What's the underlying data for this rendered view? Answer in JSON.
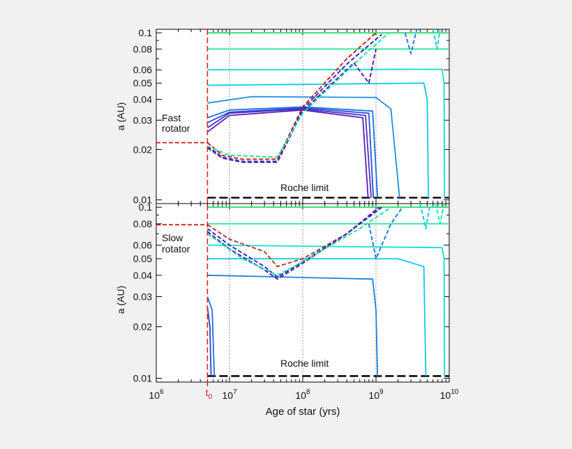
{
  "chart_data": [
    {
      "type": "line",
      "panel": "top",
      "annotation_lines": [
        "Fast",
        "rotator"
      ],
      "ylabel": "a (AU)",
      "xlabel": "",
      "xscale": "log",
      "yscale": "log",
      "xlim": [
        1000000,
        10000000000
      ],
      "ylim": [
        0.0095,
        0.105
      ],
      "yticks": [
        0.01,
        0.02,
        0.03,
        0.04,
        0.05,
        0.06,
        0.08,
        0.1
      ],
      "yticklabels": [
        "0.01",
        "0.02",
        "0.03",
        "0.04",
        "0.05",
        "0.06",
        "0.08",
        "0.1"
      ],
      "grid_x": [
        10000000,
        100000000,
        1000000000
      ],
      "reference_lines": [
        {
          "label": "Roche limit",
          "y": 0.0103,
          "x0": 5000000,
          "x1": 10000000000,
          "color": "#000000"
        },
        {
          "label": "",
          "y": 0.022,
          "x0": 1000000,
          "x1": 5000000,
          "color": "#cc1a1a"
        }
      ],
      "t0": 5000000,
      "series": [
        {
          "style": "solid",
          "color": "#20e060",
          "points": [
            [
              5000000,
              0.1
            ],
            [
              10000000000,
              0.1
            ]
          ]
        },
        {
          "style": "solid",
          "color": "#30e8a0",
          "points": [
            [
              5000000,
              0.08
            ],
            [
              10000000000,
              0.08
            ]
          ]
        },
        {
          "style": "solid",
          "color": "#10e0d0",
          "points": [
            [
              5000000,
              0.06
            ],
            [
              8000000000,
              0.0605
            ],
            [
              8500000000,
              0.05
            ],
            [
              8600000000,
              0.0103
            ]
          ]
        },
        {
          "style": "solid",
          "color": "#10c8e8",
          "points": [
            [
              5000000,
              0.0485
            ],
            [
              4500000000,
              0.05
            ],
            [
              5000000000,
              0.04
            ],
            [
              5200000000,
              0.0103
            ]
          ]
        },
        {
          "style": "solid",
          "color": "#1a90e0",
          "points": [
            [
              5000000,
              0.038
            ],
            [
              20000000,
              0.0415
            ],
            [
              1000000000,
              0.041
            ],
            [
              1600000000,
              0.035
            ],
            [
              2100000000,
              0.0103
            ]
          ]
        },
        {
          "style": "solid",
          "color": "#1a6ee0",
          "points": [
            [
              5000000,
              0.031
            ],
            [
              10000000,
              0.0345
            ],
            [
              100000000,
              0.036
            ],
            [
              900000000,
              0.034
            ],
            [
              1050000000,
              0.0103
            ]
          ]
        },
        {
          "style": "solid",
          "color": "#2a4cd8",
          "points": [
            [
              5000000,
              0.029
            ],
            [
              10000000,
              0.0335
            ],
            [
              100000000,
              0.0355
            ],
            [
              800000000,
              0.033
            ],
            [
              920000000,
              0.0103
            ]
          ]
        },
        {
          "style": "solid",
          "color": "#4a30c8",
          "points": [
            [
              5000000,
              0.027
            ],
            [
              10000000,
              0.033
            ],
            [
              100000000,
              0.035
            ],
            [
              720000000,
              0.032
            ],
            [
              860000000,
              0.0103
            ]
          ]
        },
        {
          "style": "solid",
          "color": "#5a20b8",
          "points": [
            [
              5000000,
              0.0255
            ],
            [
              10000000,
              0.032
            ],
            [
              100000000,
              0.0345
            ],
            [
              660000000,
              0.031
            ],
            [
              780000000,
              0.0103
            ]
          ]
        },
        {
          "style": "dashed",
          "color": "#cc2020",
          "points": [
            [
              5000000,
              0.022
            ],
            [
              8000000,
              0.0185
            ],
            [
              15000000,
              0.0175
            ],
            [
              45000000,
              0.0175
            ],
            [
              100000000,
              0.036
            ],
            [
              400000000,
              0.07
            ],
            [
              1000000000,
              0.1
            ]
          ]
        },
        {
          "style": "dashed",
          "color": "#2a30c8",
          "points": [
            [
              5000000,
              0.021
            ],
            [
              8000000,
              0.018
            ],
            [
              15000000,
              0.017
            ],
            [
              45000000,
              0.017
            ],
            [
              100000000,
              0.035
            ],
            [
              400000000,
              0.065
            ],
            [
              1200000000,
              0.098
            ]
          ]
        },
        {
          "style": "dashed",
          "color": "#5020b0",
          "points": [
            [
              5000000,
              0.0205
            ],
            [
              8000000,
              0.0178
            ],
            [
              15000000,
              0.0168
            ],
            [
              45000000,
              0.0168
            ],
            [
              100000000,
              0.034
            ],
            [
              500000000,
              0.066
            ],
            [
              800000000,
              0.05
            ],
            [
              1000000000,
              0.08
            ]
          ]
        },
        {
          "style": "dashed",
          "color": "#20e0a0",
          "points": [
            [
              5000000,
              0.021
            ],
            [
              10000000,
              0.0185
            ],
            [
              45000000,
              0.018
            ],
            [
              100000000,
              0.033
            ],
            [
              600000000,
              0.07
            ],
            [
              1500000000,
              0.1
            ]
          ]
        },
        {
          "style": "dashed",
          "color": "#1a80e0",
          "points": [
            [
              2500000000,
              0.1
            ],
            [
              3000000000,
              0.075
            ],
            [
              3600000000,
              0.105
            ]
          ]
        },
        {
          "style": "dashed",
          "color": "#10d0e0",
          "points": [
            [
              6000000000,
              0.105
            ],
            [
              6800000000,
              0.08
            ],
            [
              7500000000,
              0.105
            ]
          ]
        }
      ]
    },
    {
      "type": "line",
      "panel": "bottom",
      "annotation_lines": [
        "Slow",
        "rotator"
      ],
      "ylabel": "a (AU)",
      "xlabel": "Age of star (yrs)",
      "xscale": "log",
      "yscale": "log",
      "xlim": [
        1000000,
        10000000000
      ],
      "ylim": [
        0.0095,
        0.105
      ],
      "yticks": [
        0.01,
        0.02,
        0.03,
        0.04,
        0.05,
        0.06,
        0.08,
        0.1
      ],
      "yticklabels": [
        "0.01",
        "0.02",
        "0.03",
        "0.04",
        "0.05",
        "0.06",
        "0.08",
        "0.1"
      ],
      "xticks": [
        1000000,
        10000000,
        100000000,
        1000000000,
        10000000000
      ],
      "xtick_bases": [
        "10",
        "10",
        "10",
        "10",
        "10"
      ],
      "xtick_exps": [
        "6",
        "7",
        "8",
        "9",
        "10"
      ],
      "t0_label_base": "t",
      "t0_label_sub": "0",
      "grid_x": [
        10000000,
        100000000,
        1000000000
      ],
      "reference_lines": [
        {
          "label": "Roche limit",
          "y": 0.0103,
          "x0": 5000000,
          "x1": 10000000000,
          "color": "#000000"
        },
        {
          "label": "",
          "y": 0.079,
          "x0": 1000000,
          "x1": 5000000,
          "color": "#cc1a1a"
        }
      ],
      "t0": 5000000,
      "series": [
        {
          "style": "solid",
          "color": "#20e060",
          "points": [
            [
              5000000,
              0.1
            ],
            [
              10000000000,
              0.1
            ]
          ]
        },
        {
          "style": "solid",
          "color": "#30e8a0",
          "points": [
            [
              5000000,
              0.08
            ],
            [
              10000000000,
              0.08
            ]
          ]
        },
        {
          "style": "solid",
          "color": "#10e0d0",
          "points": [
            [
              5000000,
              0.06
            ],
            [
              8000000000,
              0.058
            ],
            [
              8500000000,
              0.05
            ],
            [
              8600000000,
              0.0103
            ]
          ]
        },
        {
          "style": "solid",
          "color": "#10c8e8",
          "points": [
            [
              5000000,
              0.05
            ],
            [
              2000000000,
              0.05
            ],
            [
              4500000000,
              0.045
            ],
            [
              4800000000,
              0.0103
            ]
          ]
        },
        {
          "style": "solid",
          "color": "#1a80e0",
          "points": [
            [
              5000000,
              0.04
            ],
            [
              900000000,
              0.038
            ],
            [
              1000000000,
              0.025
            ],
            [
              1050000000,
              0.0103
            ]
          ]
        },
        {
          "style": "solid",
          "color": "#1a6ee0",
          "points": [
            [
              5000000,
              0.03
            ],
            [
              5800000,
              0.025
            ],
            [
              6200000,
              0.0103
            ]
          ]
        },
        {
          "style": "solid",
          "color": "#2a40d0",
          "points": [
            [
              5000000,
              0.026
            ],
            [
              5400000,
              0.02
            ],
            [
              5600000,
              0.0103
            ]
          ]
        },
        {
          "style": "dashed",
          "color": "#b04030",
          "points": [
            [
              5000000,
              0.079
            ],
            [
              10000000,
              0.065
            ],
            [
              30000000,
              0.055
            ],
            [
              45000000,
              0.045
            ],
            [
              100000000,
              0.05
            ],
            [
              400000000,
              0.07
            ],
            [
              1200000000,
              0.1
            ]
          ]
        },
        {
          "style": "dashed",
          "color": "#2a30c8",
          "points": [
            [
              5000000,
              0.075
            ],
            [
              10000000,
              0.06
            ],
            [
              30000000,
              0.045
            ],
            [
              45000000,
              0.039
            ],
            [
              100000000,
              0.048
            ],
            [
              400000000,
              0.07
            ],
            [
              1200000000,
              0.1
            ]
          ]
        },
        {
          "style": "dashed",
          "color": "#5020b0",
          "points": [
            [
              5000000,
              0.072
            ],
            [
              10000000,
              0.057
            ],
            [
              30000000,
              0.043
            ],
            [
              45000000,
              0.038
            ],
            [
              100000000,
              0.047
            ],
            [
              400000000,
              0.07
            ],
            [
              1100000000,
              0.1
            ]
          ]
        },
        {
          "style": "dashed",
          "color": "#20e0a0",
          "points": [
            [
              5000000,
              0.07
            ],
            [
              15000000,
              0.05
            ],
            [
              45000000,
              0.04
            ],
            [
              100000000,
              0.048
            ],
            [
              600000000,
              0.075
            ],
            [
              1500000000,
              0.098
            ]
          ]
        },
        {
          "style": "dashed",
          "color": "#1a80e0",
          "points": [
            [
              800000000,
              0.08
            ],
            [
              1000000000,
              0.05
            ],
            [
              1600000000,
              0.08
            ],
            [
              2300000000,
              0.1
            ]
          ]
        },
        {
          "style": "dashed",
          "color": "#10d0e0",
          "points": [
            [
              4000000000,
              0.105
            ],
            [
              4800000000,
              0.075
            ],
            [
              5500000000,
              0.105
            ]
          ]
        },
        {
          "style": "dashed",
          "color": "#10e8c0",
          "points": [
            [
              6500000000,
              0.105
            ],
            [
              7500000000,
              0.08
            ],
            [
              8500000000,
              0.105
            ]
          ]
        }
      ]
    }
  ]
}
